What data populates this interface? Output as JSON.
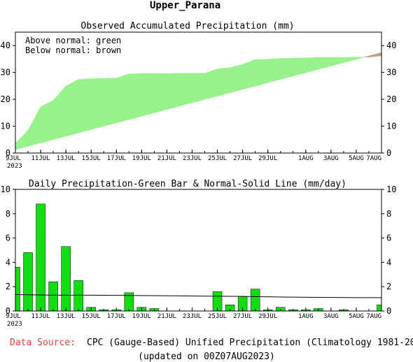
{
  "region": "Upper_Parana",
  "footer": {
    "source_label": "Data Source:",
    "source_text": "CPC (Gauge-Based) Unified Precipitation (Climatology 1981-2010)",
    "updated": "(updated on 00Z07AUG2023)"
  },
  "colors": {
    "above_normal": "#98f28c",
    "below_normal": "#c89c8c",
    "bar": "#11dd11",
    "source_label": "#dd4444"
  },
  "x_ticks": [
    "9JUL",
    "11JUL",
    "13JUL",
    "15JUL",
    "17JUL",
    "19JUL",
    "21JUL",
    "23JUL",
    "25JUL",
    "27JUL",
    "29JUL",
    "1AUG",
    "3AUG",
    "5AUG",
    "7AUG"
  ],
  "x_year": "2023",
  "chart_data": [
    {
      "type": "area",
      "title": "Observed Accumulated Precipitation (mm)",
      "annotations": [
        "Above normal: green",
        "Below normal: brown"
      ],
      "ylim": [
        0,
        45
      ],
      "yticks": [
        0,
        10,
        20,
        30,
        40
      ],
      "day_ticks": [
        0,
        2,
        4,
        6,
        8,
        10,
        12,
        14,
        16,
        18,
        20,
        23,
        25,
        27,
        29
      ],
      "x_range": [
        0,
        29
      ],
      "grid": false,
      "series": [
        {
          "name": "Observed",
          "days": [
            0,
            1,
            2,
            3,
            4,
            5,
            6,
            7,
            8,
            9,
            10,
            11,
            12,
            13,
            14,
            15,
            16,
            17,
            18,
            19,
            20,
            21,
            22,
            23,
            24,
            25,
            26,
            27,
            28,
            29
          ],
          "values": [
            3.6,
            8.4,
            17.2,
            19.6,
            24.9,
            27.4,
            27.7,
            27.8,
            27.9,
            29.4,
            29.6,
            29.6,
            29.6,
            29.7,
            29.7,
            29.7,
            31.3,
            31.8,
            33.0,
            34.8,
            34.9,
            35.2,
            35.3,
            35.4,
            35.6,
            35.6,
            35.6,
            35.7,
            35.7,
            36.2
          ]
        },
        {
          "name": "Normal",
          "days": [
            0,
            29
          ],
          "values": [
            1.3,
            37.4
          ]
        }
      ]
    },
    {
      "type": "bar",
      "title": "Daily Precipitation-Green Bar & Normal-Solid Line (mm/day)",
      "ylim": [
        0,
        10
      ],
      "yticks": [
        0,
        2,
        4,
        6,
        8,
        10
      ],
      "day_ticks": [
        0,
        2,
        4,
        6,
        8,
        10,
        12,
        14,
        16,
        18,
        20,
        23,
        25,
        27,
        29
      ],
      "x_range": [
        0,
        29
      ],
      "grid": false,
      "series": [
        {
          "name": "Daily Precipitation",
          "days": [
            0,
            1,
            2,
            3,
            4,
            5,
            6,
            7,
            8,
            9,
            10,
            11,
            12,
            13,
            14,
            15,
            16,
            17,
            18,
            19,
            20,
            21,
            22,
            23,
            24,
            25,
            26,
            27,
            28,
            29
          ],
          "values": [
            3.6,
            4.8,
            8.8,
            2.4,
            5.3,
            2.5,
            0.3,
            0.1,
            0.1,
            1.5,
            0.3,
            0.2,
            0.0,
            0.0,
            0.0,
            0.0,
            1.6,
            0.5,
            1.2,
            1.8,
            0.1,
            0.3,
            0.1,
            0.1,
            0.2,
            0.0,
            0.1,
            0.0,
            0.0,
            0.5
          ]
        },
        {
          "name": "Normal",
          "days": [
            0,
            3,
            6,
            9,
            12,
            15,
            18,
            21,
            24,
            27,
            29
          ],
          "values": [
            1.35,
            1.3,
            1.3,
            1.28,
            1.25,
            1.22,
            1.2,
            1.15,
            1.12,
            1.1,
            1.1
          ]
        }
      ]
    }
  ]
}
